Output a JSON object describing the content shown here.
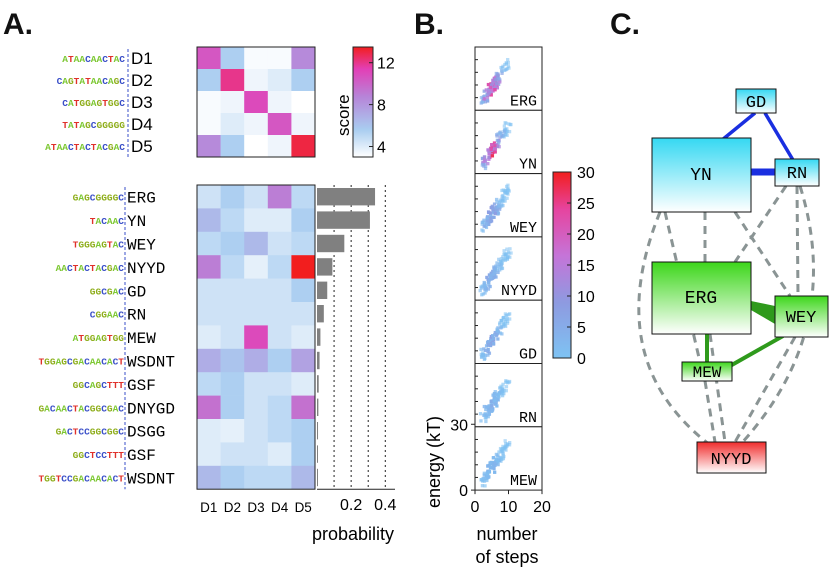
{
  "panels": {
    "a": "A.",
    "b": "B.",
    "c": "C."
  },
  "nuc_colors": {
    "A": "#7dc833",
    "C": "#3a4fc8",
    "G": "#8fae1c",
    "T": "#e0312b"
  },
  "chart_data": [
    {
      "type": "heatmap",
      "name": "design-similarity",
      "rows": [
        "D1",
        "D2",
        "D3",
        "D4",
        "D5"
      ],
      "row_seqs": [
        "ATAACAACTAC",
        "CAGTATAACAGC",
        "CATGGAGTGGC",
        "TATAGCGGGGG",
        "ATAACTACTACGAC"
      ],
      "cols": [
        "D1",
        "D2",
        "D3",
        "D4",
        "D5"
      ],
      "values": [
        [
          10.5,
          5.5,
          3.2,
          3.2,
          8.5
        ],
        [
          5.5,
          12.0,
          3.5,
          4.0,
          5.5
        ],
        [
          3.2,
          3.5,
          11.0,
          3.5,
          3.0
        ],
        [
          3.2,
          4.0,
          3.5,
          10.5,
          3.5
        ],
        [
          8.5,
          5.5,
          3.0,
          3.5,
          13.0
        ]
      ],
      "colorbar": {
        "label": "score",
        "ticks": [
          4,
          8,
          12
        ],
        "range": [
          3,
          13.5
        ]
      }
    },
    {
      "type": "heatmap",
      "name": "motif-probability",
      "rows": [
        "ERG",
        "YN",
        "WEY",
        "NYYD",
        "GD",
        "RN",
        "MEW",
        "WSDNT",
        "GSF",
        "DNYGD",
        "DSGG",
        "GSF",
        "WSDNT"
      ],
      "row_seqs": [
        "GAGCGGGGC",
        "TACAAC",
        "TGGGAGTAC",
        "AACTACTACGAC",
        "GGCGAC",
        "CGGAAC",
        "ATGGAGTGG",
        "TGGAGCGACAACACT",
        "GGCAGCTTT",
        "GACAACTACGGCGAC",
        "GACTCCGGCGGC",
        "GGCTCCTTT",
        "TGGTCCGACAACACT"
      ],
      "cols": [
        "D1",
        "D2",
        "D3",
        "D4",
        "D5"
      ],
      "values": [
        [
          4.5,
          5.5,
          4.5,
          9.0,
          5.0
        ],
        [
          6.5,
          5.0,
          4.0,
          4.0,
          5.5
        ],
        [
          5.0,
          5.5,
          6.5,
          4.5,
          5.0
        ],
        [
          9.0,
          5.0,
          3.8,
          5.0,
          13.5
        ],
        [
          4.5,
          4.5,
          4.5,
          4.5,
          5.5
        ],
        [
          4.5,
          4.5,
          4.5,
          4.5,
          4.5
        ],
        [
          4.0,
          4.5,
          11.0,
          4.5,
          4.0
        ],
        [
          7.0,
          6.0,
          7.0,
          5.5,
          7.5
        ],
        [
          5.0,
          5.5,
          4.5,
          4.5,
          4.0
        ],
        [
          9.5,
          5.5,
          4.5,
          5.0,
          9.5
        ],
        [
          4.0,
          3.8,
          4.5,
          5.0,
          5.5
        ],
        [
          4.0,
          4.5,
          4.5,
          4.0,
          5.5
        ],
        [
          6.5,
          5.5,
          5.0,
          5.0,
          6.5
        ]
      ]
    },
    {
      "type": "bar",
      "name": "motif-probability-bars",
      "categories": [
        "ERG",
        "YN",
        "WEY",
        "NYYD",
        "GD",
        "RN",
        "MEW",
        "WSDNT",
        "GSF",
        "DNYGD",
        "DSGG",
        "GSF",
        "WSDNT"
      ],
      "values": [
        0.34,
        0.31,
        0.16,
        0.09,
        0.06,
        0.04,
        0.02,
        0.015,
        0.01,
        0.008,
        0.006,
        0.005,
        0.004
      ],
      "xlabel": "probability",
      "xticks": [
        0.2,
        0.4
      ],
      "xlim": [
        0,
        0.42
      ]
    },
    {
      "type": "heatmap",
      "name": "energy-vs-steps",
      "panels": [
        "ERG",
        "YN",
        "WEY",
        "NYYD",
        "GD",
        "RN",
        "MEW"
      ],
      "panel_peaks": [
        26,
        30,
        10,
        8,
        9,
        5,
        4
      ],
      "xlabel": "number of steps",
      "ylabel": "energy (kT)",
      "xticks": [
        0,
        10,
        20
      ],
      "yticks": [
        0,
        30
      ],
      "xlim": [
        0,
        20
      ],
      "colorbar": {
        "ticks": [
          0,
          5,
          10,
          15,
          20,
          25,
          30
        ],
        "range": [
          0,
          30
        ]
      }
    }
  ],
  "network": {
    "nodes": [
      "GD",
      "YN",
      "RN",
      "ERG",
      "WEY",
      "MEW",
      "NYYD"
    ]
  }
}
